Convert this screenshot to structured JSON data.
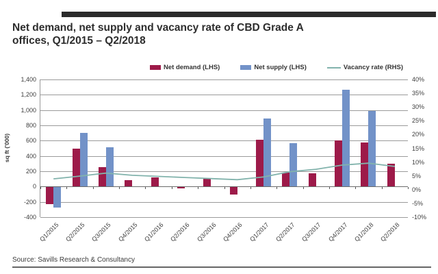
{
  "header": {
    "title_line1": "Net demand, net supply and vacancy rate of CBD Grade A",
    "title_line2": "offices, Q1/2015 – Q2/2018"
  },
  "legend": {
    "items": [
      {
        "label": "Net demand (LHS)",
        "color": "#9D1A49",
        "type": "box"
      },
      {
        "label": "Net supply (LHS)",
        "color": "#7292C8",
        "type": "box"
      },
      {
        "label": "Vacancy rate (RHS)",
        "color": "#82B3AC",
        "type": "line"
      }
    ]
  },
  "chart_data": {
    "type": "combo",
    "categories": [
      "Q1/2015",
      "Q2/2015",
      "Q3/2015",
      "Q4/2015",
      "Q1/2016",
      "Q2/2016",
      "Q3/2016",
      "Q4/2016",
      "Q1/2017",
      "Q2/2017",
      "Q3/2017",
      "Q4/2017",
      "Q1/2018",
      "Q2/2018"
    ],
    "series": [
      {
        "name": "Net demand (LHS)",
        "type": "bar",
        "axis": "left",
        "color": "#9D1A49",
        "values": [
          -220,
          500,
          255,
          85,
          120,
          -15,
          110,
          -100,
          610,
          180,
          175,
          600,
          580,
          300
        ]
      },
      {
        "name": "Net supply (LHS)",
        "type": "bar",
        "axis": "left",
        "color": "#7292C8",
        "values": [
          -270,
          700,
          510,
          0,
          0,
          0,
          0,
          0,
          890,
          570,
          0,
          1270,
          985,
          0
        ]
      },
      {
        "name": "Vacancy rate (RHS)",
        "type": "line",
        "axis": "right",
        "color": "#82B3AC",
        "values": [
          3.9,
          4.9,
          6.0,
          5.2,
          4.8,
          4.4,
          4.0,
          3.6,
          4.6,
          6.5,
          7.4,
          8.9,
          9.6,
          8.4
        ]
      }
    ],
    "axes": {
      "left": {
        "title": "sq ft ('000)",
        "min": -400,
        "max": 1400,
        "ticks": [
          "1,400",
          "1,200",
          "1,000",
          "800",
          "600",
          "400",
          "200",
          "0",
          "-200",
          "-400"
        ]
      },
      "right": {
        "min": -10,
        "max": 40,
        "ticks": [
          "40%",
          "35%",
          "30%",
          "25%",
          "20%",
          "15%",
          "10%",
          "5%",
          "0%",
          "-5%",
          "-10%"
        ]
      }
    },
    "grid": "horizontal",
    "legend_position": "top"
  },
  "source": {
    "text": "Source: Savills Research & Consultancy"
  }
}
